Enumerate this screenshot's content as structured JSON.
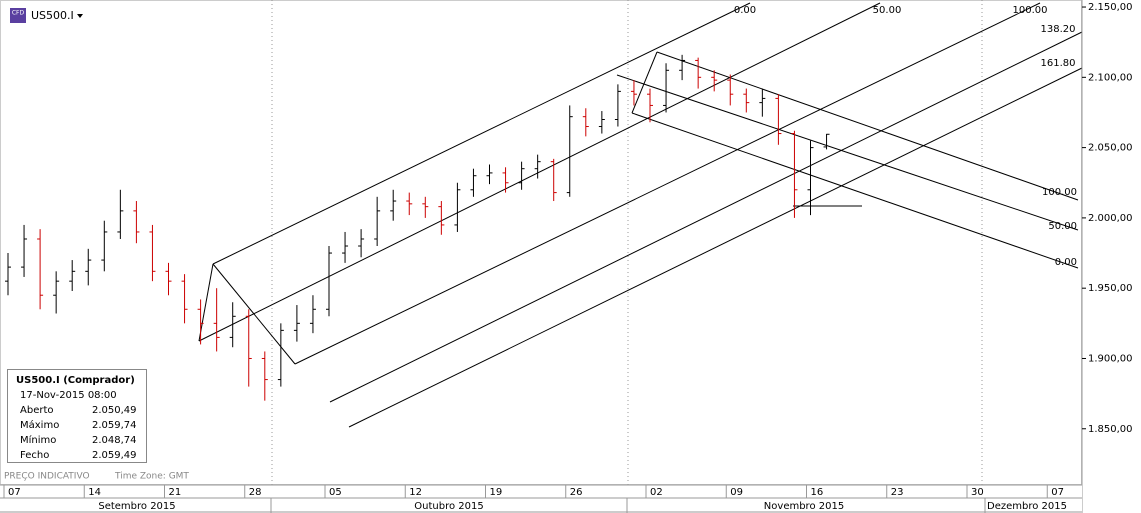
{
  "toolbar": {
    "symbol": "US500.I",
    "badge": "CFD"
  },
  "chart_data": {
    "type": "ohlc",
    "categories": [
      "07",
      null,
      null,
      null,
      null,
      "14",
      null,
      null,
      null,
      null,
      "21",
      null,
      null,
      null,
      null,
      "28",
      null,
      null,
      null,
      null,
      "05",
      null,
      null,
      null,
      null,
      "12",
      null,
      null,
      null,
      null,
      "19",
      null,
      null,
      null,
      null,
      "26",
      null,
      null,
      null,
      null,
      "02",
      null,
      null,
      null,
      null,
      "09",
      null,
      null,
      null,
      null,
      "16",
      null,
      null,
      null,
      null,
      "23",
      null,
      null,
      null,
      null,
      "30",
      null,
      null,
      null,
      null,
      "07",
      null
    ],
    "open": [
      1955,
      1965,
      1985,
      1945,
      1955,
      1962,
      1970,
      1990,
      2005,
      1990,
      1962,
      1955,
      1935,
      1925,
      1915,
      1930,
      1900,
      1885,
      1920,
      1925,
      1935,
      1975,
      1980,
      1985,
      2005,
      2012,
      2010,
      2008,
      1995,
      2020,
      2030,
      2032,
      2025,
      2035,
      2040,
      2018,
      2072,
      2065,
      2070,
      2090,
      2088,
      2080,
      2105,
      2112,
      2100,
      2098,
      2088,
      2082,
      2085,
      2060,
      2020,
      2050.49,
      null,
      null,
      null,
      null,
      null,
      null,
      null,
      null,
      null,
      null,
      null,
      null,
      null,
      null,
      null
    ],
    "high": [
      1975,
      1995,
      1992,
      1962,
      1970,
      1978,
      1998,
      2020,
      2012,
      1995,
      1968,
      1960,
      1942,
      1950,
      1940,
      1935,
      1905,
      1925,
      1938,
      1945,
      1980,
      1990,
      1992,
      2015,
      2020,
      2018,
      2015,
      2012,
      2025,
      2035,
      2038,
      2036,
      2040,
      2045,
      2042,
      2080,
      2078,
      2076,
      2095,
      2098,
      2092,
      2110,
      2116,
      2114,
      2105,
      2102,
      2092,
      2092,
      2088,
      2062,
      2055,
      2059.74,
      null,
      null,
      null,
      null,
      null,
      null,
      null,
      null,
      null,
      null,
      null,
      null,
      null,
      null,
      null
    ],
    "low": [
      1945,
      1958,
      1935,
      1932,
      1948,
      1952,
      1962,
      1985,
      1982,
      1955,
      1945,
      1925,
      1910,
      1905,
      1908,
      1880,
      1870,
      1880,
      1912,
      1918,
      1930,
      1968,
      1972,
      1980,
      1998,
      2002,
      2000,
      1988,
      1990,
      2015,
      2024,
      2018,
      2020,
      2028,
      2012,
      2015,
      2058,
      2060,
      2065,
      2080,
      2068,
      2075,
      2098,
      2092,
      2090,
      2080,
      2075,
      2072,
      2052,
      2000,
      2002,
      2048.74,
      null,
      null,
      null,
      null,
      null,
      null,
      null,
      null,
      null,
      null,
      null,
      null,
      null,
      null,
      null
    ],
    "close": [
      1965,
      1985,
      1945,
      1955,
      1962,
      1970,
      1990,
      2005,
      1990,
      1962,
      1955,
      1935,
      1925,
      1915,
      1930,
      1900,
      1885,
      1920,
      1925,
      1935,
      1975,
      1980,
      1985,
      2005,
      2012,
      2010,
      2008,
      1995,
      2020,
      2030,
      2032,
      2025,
      2035,
      2040,
      2018,
      2072,
      2065,
      2070,
      2090,
      2088,
      2080,
      2105,
      2112,
      2100,
      2098,
      2088,
      2082,
      2085,
      2060,
      2020,
      2050,
      2059.49,
      null,
      null,
      null,
      null,
      null,
      null,
      null,
      null,
      null,
      null,
      null,
      null,
      null,
      null,
      null
    ],
    "up_color": "#000000",
    "down_color": "#cc0000",
    "ylim": [
      1810,
      2155
    ],
    "yticks": [
      {
        "value": 1850,
        "label": "1.850,00"
      },
      {
        "value": 1900,
        "label": "1.900,00"
      },
      {
        "value": 1950,
        "label": "1.950,00"
      },
      {
        "value": 2000,
        "label": "2.000,00"
      },
      {
        "value": 2050,
        "label": "2.050,00"
      },
      {
        "value": 2100,
        "label": "2.100,00"
      },
      {
        "value": 2150,
        "label": "2.150,00"
      }
    ],
    "months": [
      "Setembro 2015",
      "Outubro 2015",
      "Novembro 2015",
      "Dezembro 2015"
    ],
    "pitchfork_top_labels": [
      "0.00",
      "50.00",
      "100.00",
      "138.20",
      "161.80"
    ],
    "pitchfork_right_labels": [
      "100.00",
      "50.00",
      "0.00"
    ]
  },
  "info_box": {
    "title": "US500.I (Comprador)",
    "date": "17-Nov-2015 08:00",
    "rows": [
      [
        "Aberto",
        "2.050,49"
      ],
      [
        "Máximo",
        "2.059,74"
      ],
      [
        "Mínimo",
        "2.048,74"
      ],
      [
        "Fecho",
        "2.059,49"
      ]
    ]
  },
  "footer": {
    "note": "PREÇO INDICATIVO",
    "timezone": "Time Zone: GMT"
  }
}
